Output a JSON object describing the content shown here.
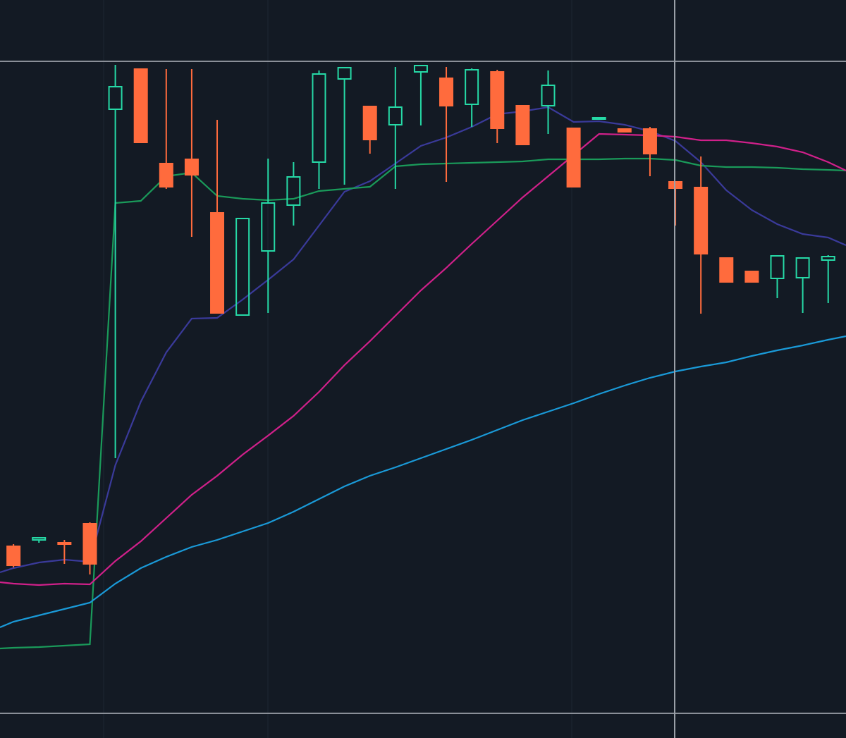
{
  "chart_data": {
    "type": "candlestick",
    "x": [
      0.47,
      1,
      2,
      3,
      4,
      5,
      6,
      7,
      8,
      9,
      10,
      11,
      12,
      13,
      14,
      15,
      16,
      17,
      18,
      19,
      20,
      21,
      22,
      23,
      24,
      25,
      26,
      27,
      28,
      29,
      30,
      31,
      32,
      33,
      33.7
    ],
    "xlim": [
      0.47,
      33.7
    ],
    "ylim": [
      0,
      1047
    ],
    "up_color": "#26d9a6",
    "down_color": "#ff6b3d",
    "open": [
      null,
      272,
      281,
      277,
      304,
      892,
      949,
      815,
      821,
      745,
      600,
      691,
      756,
      817,
      935,
      896,
      870,
      945,
      936,
      899,
      945,
      897,
      897,
      865,
      879,
      864,
      864,
      789,
      781,
      681,
      662,
      652,
      653,
      678,
      null
    ],
    "high": [
      null,
      275,
      285,
      281,
      306,
      955,
      949,
      949,
      949,
      877,
      737,
      822,
      817,
      947,
      951,
      896,
      952,
      954,
      952,
      950,
      948,
      897,
      947,
      865,
      880,
      864,
      867,
      789,
      825,
      681,
      662,
      684,
      681,
      685,
      null
    ],
    "low": [
      null,
      242,
      277,
      247,
      232,
      397,
      845,
      779,
      711,
      603,
      600,
      603,
      727,
      779,
      785,
      829,
      779,
      869,
      789,
      867,
      844,
      842,
      857,
      782,
      879,
      860,
      797,
      727,
      602,
      647,
      647,
      624,
      603,
      617,
      null
    ],
    "close": [
      null,
      245,
      284,
      275,
      247,
      924,
      845,
      782,
      799,
      603,
      737,
      759,
      796,
      942,
      951,
      849,
      895,
      954,
      897,
      948,
      865,
      842,
      926,
      782,
      880,
      860,
      829,
      780,
      687,
      647,
      647,
      684,
      681,
      683,
      null
    ],
    "series": [
      {
        "color": "#3a3a9a",
        "values": [
          235,
          241,
          249,
          253,
          250,
          387,
          477,
          547,
          595,
          596,
          622,
          650,
          679,
          727,
          775,
          790,
          815,
          840,
          852,
          867,
          885,
          889,
          895,
          874,
          875,
          870,
          861,
          847,
          817,
          777,
          749,
          729,
          715,
          710,
          699
        ]
      },
      {
        "color": "#1a9a5a",
        "values": [
          127,
          128,
          129,
          131,
          133,
          759,
          762,
          797,
          802,
          769,
          765,
          763,
          765,
          776,
          779,
          782,
          811,
          814,
          815,
          816,
          817,
          818,
          821,
          821,
          821,
          822,
          822,
          820,
          812,
          810,
          810,
          809,
          807,
          806,
          805
        ]
      },
      {
        "color": "#d0208a",
        "values": [
          221,
          219,
          217,
          219,
          218,
          251,
          279,
          312,
          345,
          372,
          402,
          429,
          457,
          491,
          529,
          563,
          599,
          635,
          667,
          701,
          734,
          767,
          797,
          827,
          857,
          856,
          855,
          853,
          848,
          848,
          844,
          839,
          831,
          817,
          805
        ]
      },
      {
        "color": "#1a9ad8",
        "values": [
          157,
          165,
          174,
          183,
          192,
          219,
          241,
          257,
          271,
          281,
          293,
          305,
          321,
          339,
          357,
          372,
          384,
          397,
          410,
          423,
          437,
          451,
          463,
          475,
          488,
          500,
          511,
          520,
          527,
          533,
          542,
          550,
          557,
          565,
          570
        ]
      }
    ]
  }
}
